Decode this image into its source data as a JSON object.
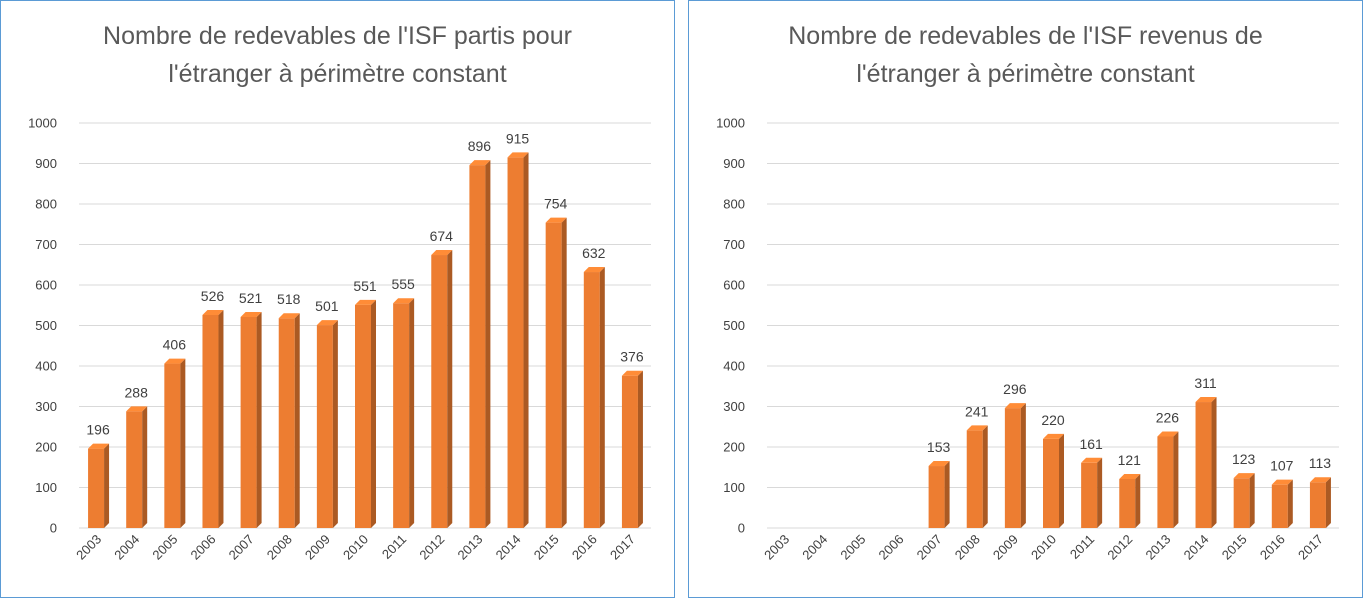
{
  "chart_data": [
    {
      "type": "bar",
      "title_lines": [
        "Nombre de redevables de l'ISF partis pour",
        "l'étranger à périmètre constant"
      ],
      "categories": [
        "2003",
        "2004",
        "2005",
        "2006",
        "2007",
        "2008",
        "2009",
        "2010",
        "2011",
        "2012",
        "2013",
        "2014",
        "2015",
        "2016",
        "2017"
      ],
      "values": [
        196,
        288,
        406,
        526,
        521,
        518,
        501,
        551,
        555,
        674,
        896,
        915,
        754,
        632,
        376
      ],
      "ylim": [
        0,
        1000
      ],
      "yticks": [
        0,
        100,
        200,
        300,
        400,
        500,
        600,
        700,
        800,
        900,
        1000
      ],
      "grid": true,
      "legend": false,
      "bar_color": "#ed7d31"
    },
    {
      "type": "bar",
      "title_lines": [
        "Nombre de redevables de l'ISF revenus de",
        "l'étranger à périmètre constant"
      ],
      "categories": [
        "2003",
        "2004",
        "2005",
        "2006",
        "2007",
        "2008",
        "2009",
        "2010",
        "2011",
        "2012",
        "2013",
        "2014",
        "2015",
        "2016",
        "2017"
      ],
      "values": [
        null,
        null,
        null,
        null,
        153,
        241,
        296,
        220,
        161,
        121,
        226,
        311,
        123,
        107,
        113
      ],
      "ylim": [
        0,
        1000
      ],
      "yticks": [
        0,
        100,
        200,
        300,
        400,
        500,
        600,
        700,
        800,
        900,
        1000
      ],
      "grid": true,
      "legend": false,
      "bar_color": "#ed7d31"
    }
  ]
}
